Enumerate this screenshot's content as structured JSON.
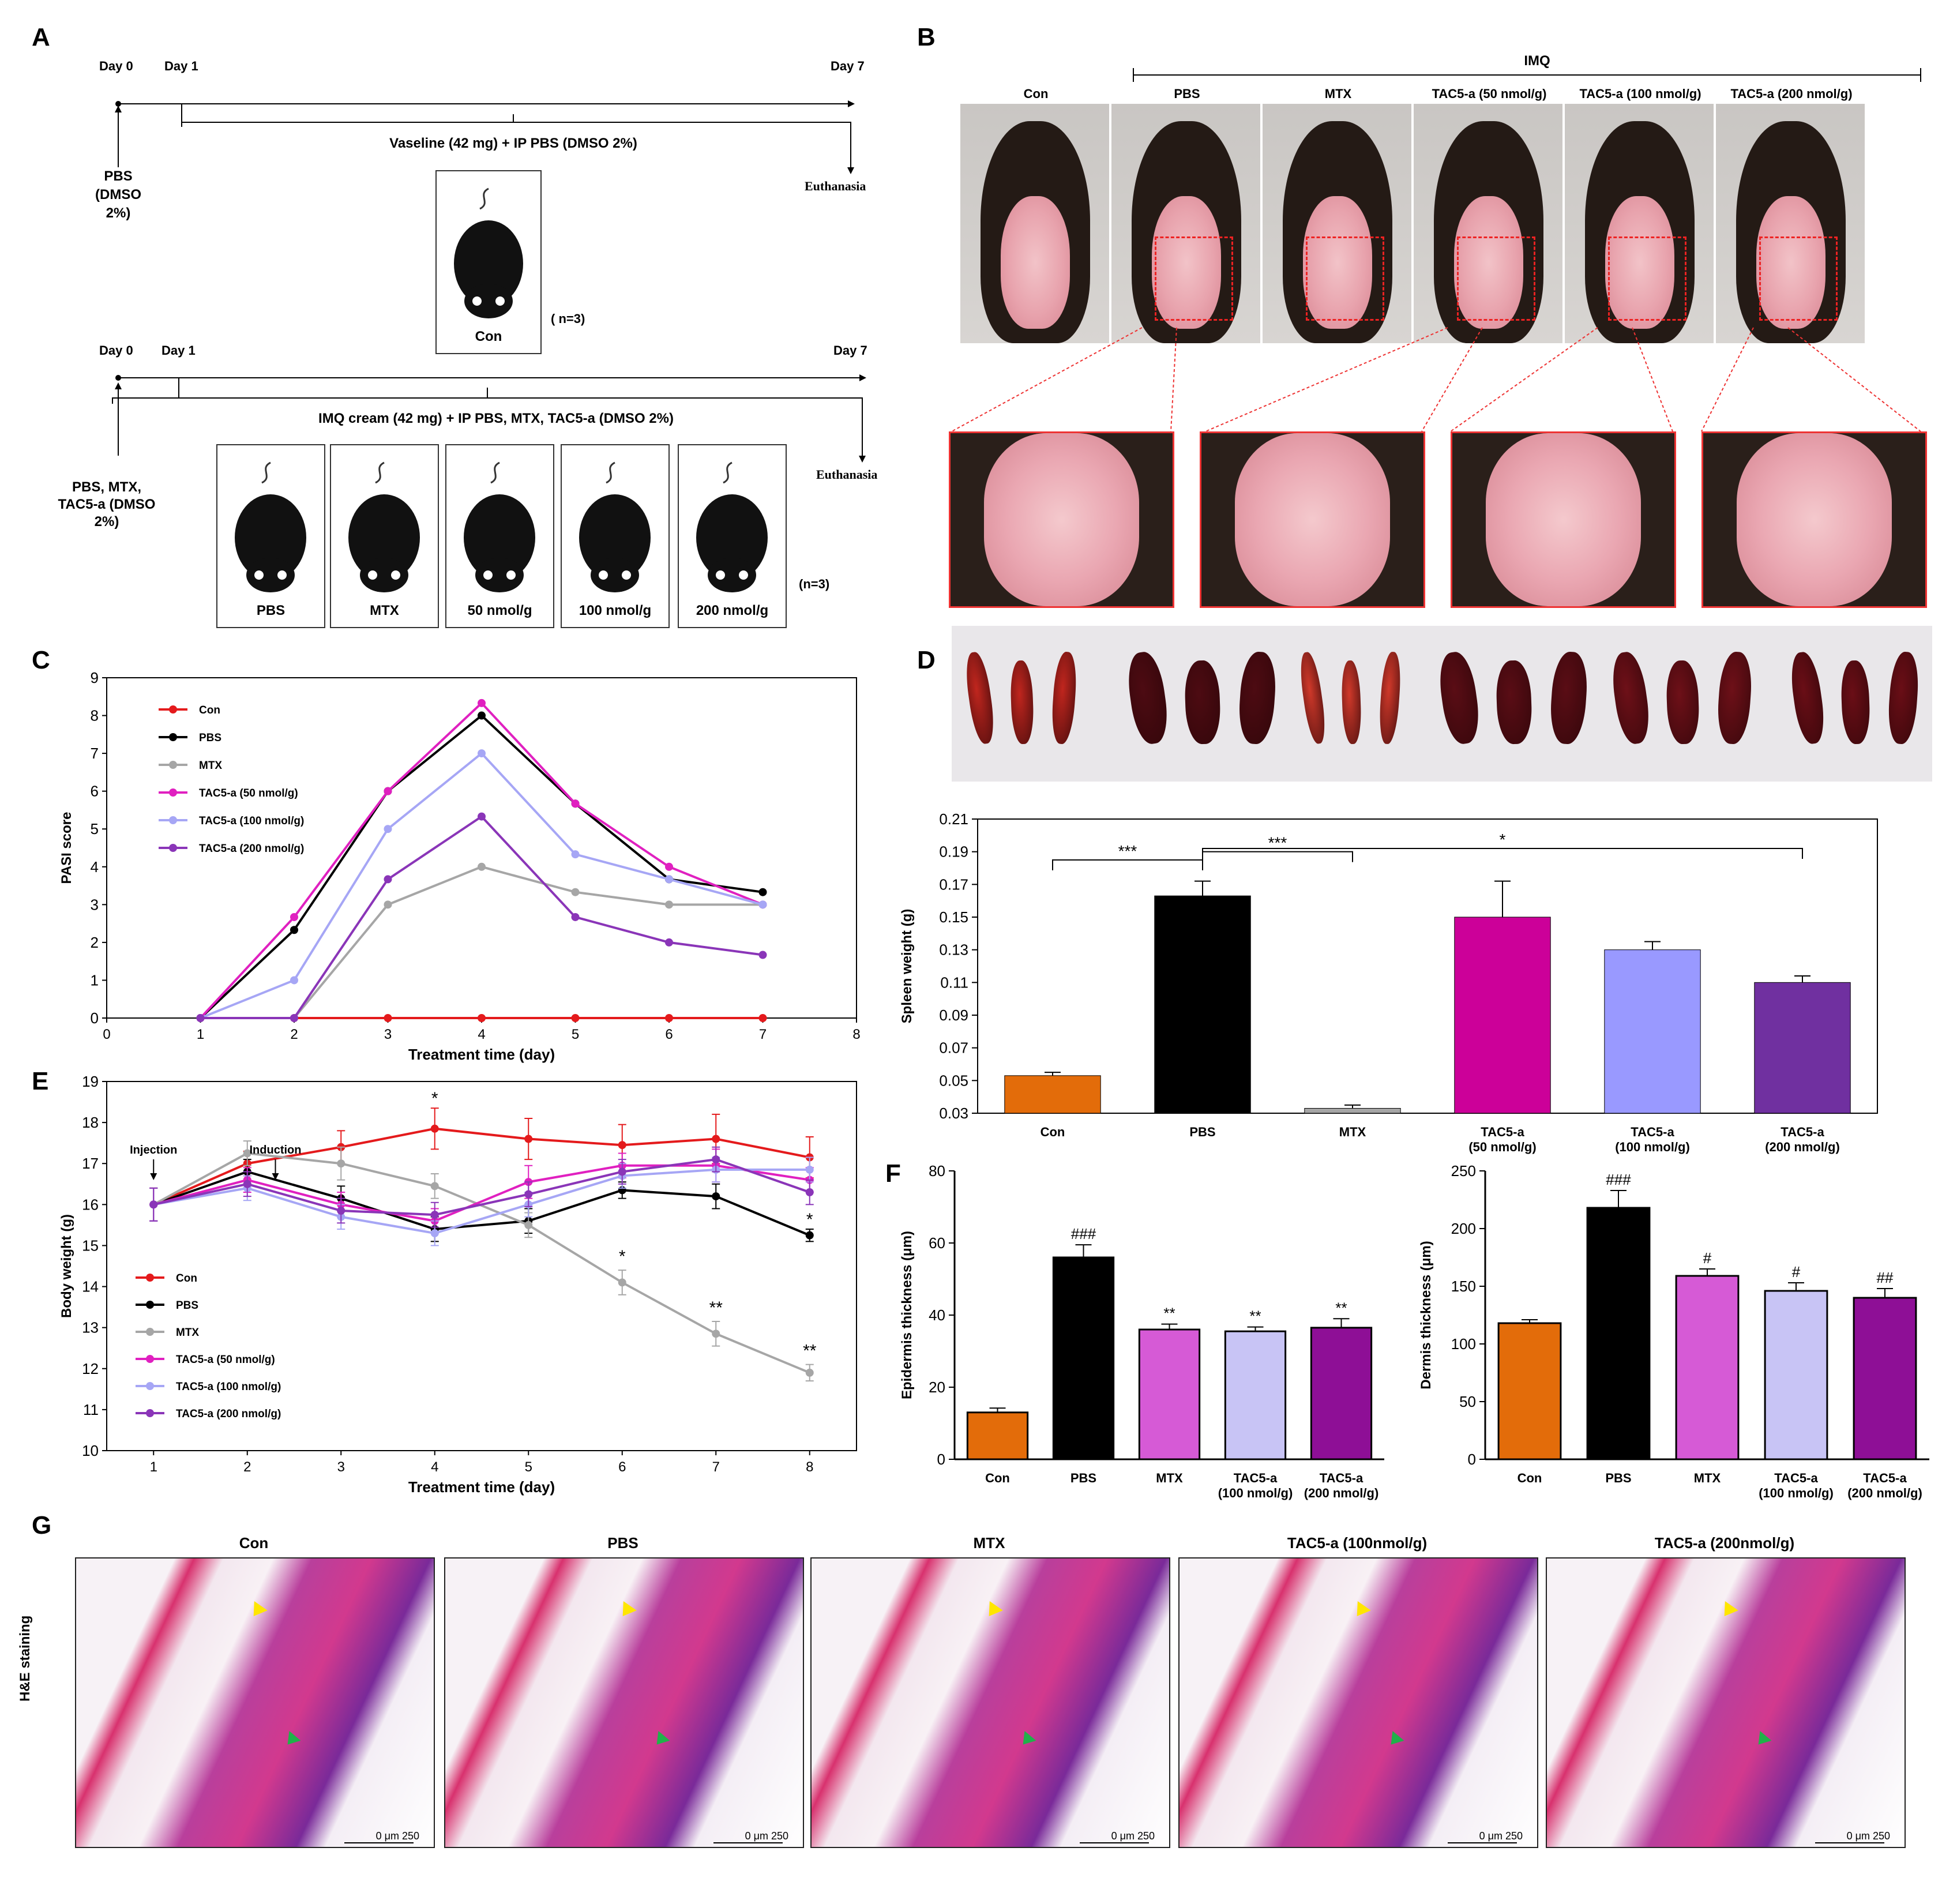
{
  "panels": {
    "A": "A",
    "B": "B",
    "C": "C",
    "D": "D",
    "E": "E",
    "F": "F",
    "G": "G"
  },
  "panelA": {
    "top": {
      "day0": "Day 0",
      "day1": "Day 1",
      "day7": "Day 7",
      "treatment": "Vaseline (42 mg) + IP PBS (DMSO 2%)",
      "injection": "PBS (DMSO 2%)",
      "end": "Euthanasia",
      "mouse_label": "Con",
      "n": "( n=3)"
    },
    "bottom": {
      "day0": "Day 0",
      "day1": "Day 1",
      "day7": "Day 7",
      "treatment": "IMQ cream (42 mg) + IP PBS, MTX, TAC5-a (DMSO 2%)",
      "injection": "PBS, MTX, TAC5-a (DMSO 2%)",
      "end": "Euthanasia",
      "mouse_labels": [
        "PBS",
        "MTX",
        "50 nmol/g",
        "100 nmol/g",
        "200 nmol/g"
      ],
      "n": "(n=3)"
    }
  },
  "panelB": {
    "bracket_label": "IMQ",
    "groups": [
      "Con",
      "PBS",
      "MTX",
      "TAC5-a (50 nmol/g)",
      "TAC5-a (100 nmol/g)",
      "TAC5-a (200 nmol/g)"
    ]
  },
  "panelG": {
    "row_label": "H&E staining",
    "groups": [
      "Con",
      "PBS",
      "MTX",
      "TAC5-a (100nmol/g)",
      "TAC5-a (200nmol/g)"
    ],
    "scale": "0   μm   250"
  },
  "chart_data": [
    {
      "id": "C",
      "type": "line",
      "xlabel": "Treatment time (day)",
      "ylabel": "PASI score",
      "xlim": [
        0,
        8
      ],
      "ylim": [
        0,
        9
      ],
      "xticks": [
        0,
        1,
        2,
        3,
        4,
        5,
        6,
        7,
        8
      ],
      "yticks": [
        0,
        1,
        2,
        3,
        4,
        5,
        6,
        7,
        8,
        9
      ],
      "x": [
        1,
        2,
        3,
        4,
        5,
        6,
        7
      ],
      "legend_position": "top-left",
      "series": [
        {
          "name": "Con",
          "color": "#e41a1c",
          "values": [
            0,
            0,
            0,
            0,
            0,
            0,
            0
          ]
        },
        {
          "name": "PBS",
          "color": "#000000",
          "values": [
            0,
            2.33,
            6,
            8,
            5.67,
            3.67,
            3.33
          ]
        },
        {
          "name": "MTX",
          "color": "#a6a6a6",
          "values": [
            0,
            0,
            3,
            4,
            3.33,
            3,
            3
          ]
        },
        {
          "name": "TAC5-a (50 nmol/g)",
          "color": "#e020c0",
          "values": [
            0,
            2.67,
            6,
            8.33,
            5.67,
            4,
            3
          ]
        },
        {
          "name": "TAC5-a (100 nmol/g)",
          "color": "#a6a6f5",
          "values": [
            0,
            1,
            5,
            7,
            4.33,
            3.67,
            3
          ]
        },
        {
          "name": "TAC5-a (200 nmol/g)",
          "color": "#8a35b8",
          "values": [
            0,
            0,
            3.67,
            5.33,
            2.67,
            2,
            1.67
          ]
        }
      ]
    },
    {
      "id": "D",
      "type": "bar",
      "ylabel": "Spleen weight (g)",
      "ylim": [
        0.03,
        0.21
      ],
      "yticks": [
        0.03,
        0.05,
        0.07,
        0.09,
        0.11,
        0.13,
        0.15,
        0.17,
        0.19,
        0.21
      ],
      "categories": [
        "Con",
        "PBS",
        "MTX",
        "TAC5-a (50 nmol/g)",
        "TAC5-a (100 nmol/g)",
        "TAC5-a (200 nmol/g)"
      ],
      "values": [
        0.053,
        0.163,
        0.033,
        0.15,
        0.13,
        0.11
      ],
      "errors": [
        0.002,
        0.009,
        0.002,
        0.022,
        0.005,
        0.004
      ],
      "colors": [
        "#e36c0a",
        "#000000",
        "#a6a6a6",
        "#cc0099",
        "#9999ff",
        "#7030a0"
      ],
      "significance": [
        {
          "from": 0,
          "to": 1,
          "label": "***"
        },
        {
          "from": 1,
          "to": 2,
          "label": "***"
        },
        {
          "from": 1,
          "to": 5,
          "label": "*"
        }
      ]
    },
    {
      "id": "E",
      "type": "line",
      "xlabel": "Treatment time (day)",
      "ylabel": "Body weight (g)",
      "xlim": [
        0.5,
        8.5
      ],
      "ylim": [
        10,
        19
      ],
      "xticks": [
        1,
        2,
        3,
        4,
        5,
        6,
        7,
        8
      ],
      "yticks": [
        10,
        11,
        12,
        13,
        14,
        15,
        16,
        17,
        18,
        19
      ],
      "x": [
        1,
        2,
        3,
        4,
        5,
        6,
        7,
        8
      ],
      "annotations": [
        {
          "text": "Injection",
          "x": 1
        },
        {
          "text": "Induction",
          "x": 2.3
        }
      ],
      "legend_position": "bottom-left",
      "series": [
        {
          "name": "Con",
          "color": "#e41a1c",
          "values": [
            16.0,
            17.0,
            17.4,
            17.85,
            17.6,
            17.45,
            17.6,
            17.15
          ],
          "errors": [
            0.4,
            0.3,
            0.4,
            0.5,
            0.5,
            0.5,
            0.6,
            0.5
          ]
        },
        {
          "name": "PBS",
          "color": "#000000",
          "values": [
            16.0,
            16.8,
            16.15,
            15.4,
            15.6,
            16.35,
            16.2,
            15.25
          ],
          "errors": [
            0.4,
            0.3,
            0.3,
            0.3,
            0.3,
            0.2,
            0.3,
            0.15
          ]
        },
        {
          "name": "MTX",
          "color": "#a6a6a6",
          "values": [
            16.0,
            17.25,
            17.0,
            16.45,
            15.5,
            14.1,
            12.85,
            11.9
          ],
          "errors": [
            0.4,
            0.3,
            0.4,
            0.3,
            0.3,
            0.3,
            0.3,
            0.2
          ]
        },
        {
          "name": "TAC5-a (50 nmol/g)",
          "color": "#e020c0",
          "values": [
            16.0,
            16.6,
            16.0,
            15.6,
            16.55,
            16.95,
            16.95,
            16.6
          ],
          "errors": [
            0.4,
            0.3,
            0.3,
            0.3,
            0.4,
            0.3,
            0.4,
            0.3
          ]
        },
        {
          "name": "TAC5-a (100 nmol/g)",
          "color": "#a6a6f5",
          "values": [
            16.0,
            16.4,
            15.7,
            15.3,
            16.0,
            16.7,
            16.85,
            16.85
          ],
          "errors": [
            0.4,
            0.3,
            0.3,
            0.3,
            0.3,
            0.3,
            0.3,
            0.3
          ]
        },
        {
          "name": "TAC5-a (200 nmol/g)",
          "color": "#8a35b8",
          "values": [
            16.0,
            16.5,
            15.85,
            15.75,
            16.25,
            16.8,
            17.1,
            16.3
          ],
          "errors": [
            0.4,
            0.3,
            0.3,
            0.3,
            0.3,
            0.3,
            0.3,
            0.3
          ]
        }
      ],
      "stars": [
        {
          "x": 4,
          "y": 18.45,
          "text": "*"
        },
        {
          "x": 8,
          "y": 15.5,
          "text": "*"
        },
        {
          "x": 6,
          "y": 14.6,
          "text": "*"
        },
        {
          "x": 7,
          "y": 13.35,
          "text": "**"
        },
        {
          "x": 8,
          "y": 12.3,
          "text": "**"
        }
      ]
    },
    {
      "id": "F1",
      "type": "bar",
      "ylabel": "Epidermis thickness (μm)",
      "ylim": [
        0,
        80
      ],
      "yticks": [
        0,
        20,
        40,
        60,
        80
      ],
      "categories": [
        "Con",
        "PBS",
        "MTX",
        "TAC5-a (100 nmol/g)",
        "TAC5-a (200 nmol/g)"
      ],
      "values": [
        13,
        56,
        36,
        35.5,
        36.5
      ],
      "errors": [
        1.2,
        3.5,
        1.5,
        1.2,
        2.5
      ],
      "colors": [
        "#e36c0a",
        "#000000",
        "#d65ad6",
        "#c8c4f5",
        "#8e0f96"
      ],
      "marks": [
        "",
        "###",
        "**",
        "**",
        "**"
      ]
    },
    {
      "id": "F2",
      "type": "bar",
      "ylabel": "Dermis thickness (μm)",
      "ylim": [
        0,
        250
      ],
      "yticks": [
        0,
        50,
        100,
        150,
        200,
        250
      ],
      "categories": [
        "Con",
        "PBS",
        "MTX",
        "TAC5-a (100 nmol/g)",
        "TAC5-a (200 nmol/g)"
      ],
      "values": [
        118,
        218,
        159,
        146,
        140
      ],
      "errors": [
        3,
        15,
        6,
        7,
        8
      ],
      "colors": [
        "#e36c0a",
        "#000000",
        "#d65ad6",
        "#c8c4f5",
        "#8e0f96"
      ],
      "marks": [
        "",
        "###",
        "#",
        "#",
        "##"
      ]
    }
  ]
}
